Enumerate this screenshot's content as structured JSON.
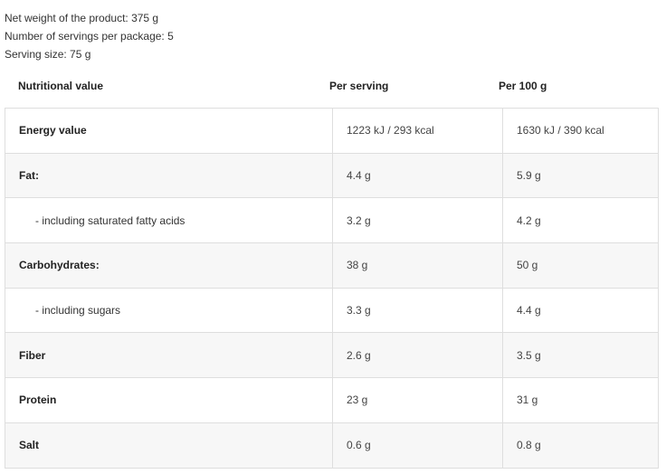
{
  "info": {
    "net_weight": "Net weight of the product: 375 g",
    "servings": "Number of servings per package: 5",
    "serving_size": "Serving size: 75 g"
  },
  "table": {
    "headers": [
      "Nutritional value",
      "Per serving",
      "Per 100 g"
    ],
    "rows": [
      {
        "name": "Energy value",
        "per_serving": "1223 kJ / 293 kcal",
        "per_100g": "1630 kJ / 390 kcal",
        "sub": false
      },
      {
        "name": "Fat:",
        "per_serving": "4.4 g",
        "per_100g": "5.9 g",
        "sub": false
      },
      {
        "name": "- including saturated fatty acids",
        "per_serving": "3.2 g",
        "per_100g": "4.2 g",
        "sub": true
      },
      {
        "name": "Carbohydrates:",
        "per_serving": "38 g",
        "per_100g": "50 g",
        "sub": false
      },
      {
        "name": "- including sugars",
        "per_serving": "3.3 g",
        "per_100g": "4.4 g",
        "sub": true
      },
      {
        "name": "Fiber",
        "per_serving": "2.6 g",
        "per_100g": "3.5 g",
        "sub": false
      },
      {
        "name": "Protein",
        "per_serving": "23 g",
        "per_100g": "31 g",
        "sub": false
      },
      {
        "name": "Salt",
        "per_serving": "0.6 g",
        "per_100g": "0.8 g",
        "sub": false
      }
    ]
  }
}
